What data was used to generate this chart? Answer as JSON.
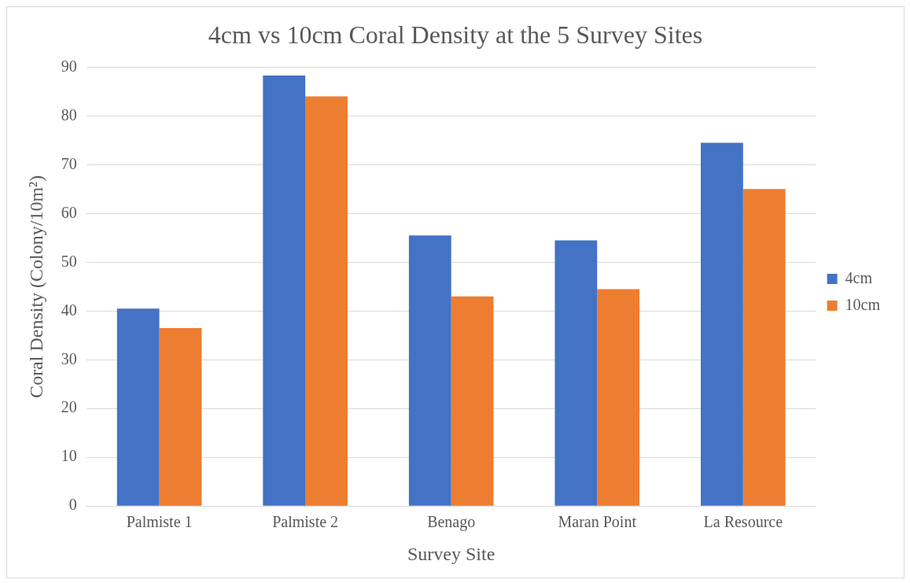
{
  "chart_data": {
    "type": "bar",
    "title": "4cm vs 10cm Coral Density at the 5 Survey Sites",
    "xlabel": "Survey Site",
    "ylabel": "Coral Density (Colony/10m²)",
    "categories": [
      "Palmiste 1",
      "Palmiste 2",
      "Benago",
      "Maran Point",
      "La Resource"
    ],
    "series": [
      {
        "name": "4cm",
        "color": "#4472c4",
        "values": [
          40.5,
          88.3,
          55.5,
          54.5,
          74.5
        ]
      },
      {
        "name": "10cm",
        "color": "#ed7d31",
        "values": [
          36.5,
          84,
          43,
          44.5,
          65
        ]
      }
    ],
    "ylim": [
      0,
      90
    ],
    "yticks": [
      0,
      10,
      20,
      30,
      40,
      50,
      60,
      70,
      80,
      90
    ],
    "grid": "y",
    "legend": "right"
  }
}
